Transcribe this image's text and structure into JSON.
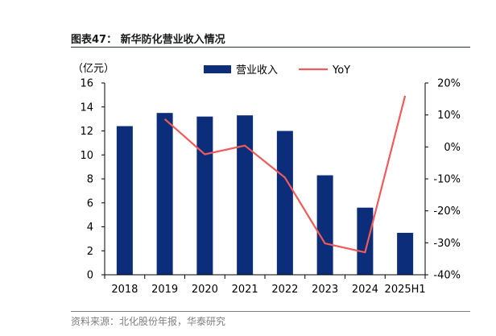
{
  "figure": {
    "title": "图表47： 新华防化营业收入情况",
    "source": "资料来源：北化股份年报，华泰研究"
  },
  "chart_data": {
    "type": "bar",
    "categories": [
      "2018",
      "2019",
      "2020",
      "2021",
      "2022",
      "2023",
      "2024",
      "2025H1"
    ],
    "y_unit_label": "（亿元）",
    "ylim": [
      0,
      16
    ],
    "y_ticks": [
      0,
      2,
      4,
      6,
      8,
      10,
      12,
      14,
      16
    ],
    "y2lim": [
      -40,
      20
    ],
    "y2_ticks": [
      "-40%",
      "-30%",
      "-20%",
      "-10%",
      "0%",
      "10%",
      "20%"
    ],
    "y2_tick_values": [
      -40,
      -30,
      -20,
      -10,
      0,
      10,
      20
    ],
    "series": [
      {
        "name": "营业收入",
        "type": "bar",
        "axis": "left",
        "color": "#0b2d7a",
        "values": [
          12.4,
          13.5,
          13.2,
          13.3,
          12.0,
          8.3,
          5.6,
          3.5
        ]
      },
      {
        "name": "YoY",
        "type": "line",
        "axis": "right",
        "color": "#f05a5a",
        "values": [
          null,
          8.7,
          -2.3,
          0.4,
          -9.6,
          -30.2,
          -33.0,
          16.0
        ]
      }
    ],
    "legend_position": "top-center",
    "grid": false
  }
}
